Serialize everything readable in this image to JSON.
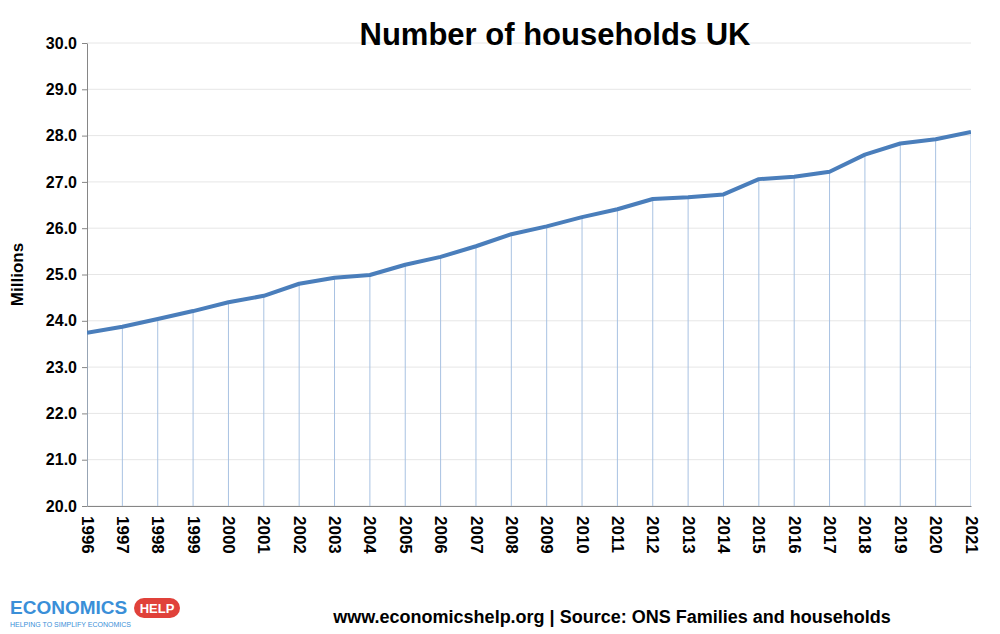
{
  "chart_data": {
    "type": "line",
    "title": "Number of households UK",
    "y_label": "Millions",
    "categories": [
      "1996",
      "1997",
      "1998",
      "1999",
      "2000",
      "2001",
      "2002",
      "2003",
      "2004",
      "2005",
      "2006",
      "2007",
      "2008",
      "2009",
      "2010",
      "2011",
      "2012",
      "2013",
      "2014",
      "2015",
      "2016",
      "2017",
      "2018",
      "2019",
      "2020",
      "2021"
    ],
    "values": [
      23.74,
      23.87,
      24.04,
      24.21,
      24.4,
      24.54,
      24.8,
      24.93,
      24.99,
      25.21,
      25.38,
      25.61,
      25.87,
      26.04,
      26.24,
      26.41,
      26.63,
      26.67,
      26.73,
      27.06,
      27.11,
      27.22,
      27.59,
      27.83,
      27.92,
      28.08
    ],
    "color": "#4a7ebb",
    "ylim": [
      20,
      30
    ],
    "yticks": [
      {
        "value": 20,
        "label": "20.0"
      },
      {
        "value": 21,
        "label": "21.0"
      },
      {
        "value": 22,
        "label": "22.0"
      },
      {
        "value": 23,
        "label": "23.0"
      },
      {
        "value": 24,
        "label": "24.0"
      },
      {
        "value": 25,
        "label": "25.0"
      },
      {
        "value": 26,
        "label": "26.0"
      },
      {
        "value": 27,
        "label": "27.0"
      },
      {
        "value": 28,
        "label": "28.0"
      },
      {
        "value": 29,
        "label": "29.0"
      },
      {
        "value": 30,
        "label": "30.0"
      }
    ],
    "grid": true,
    "source": "www.economicshelp.org | Source: ONS Families and households",
    "logo_text": "ECONOMICS",
    "logo_badge": "HELP",
    "logo_tagline": "HELPING TO SIMPLIFY ECONOMICS"
  }
}
